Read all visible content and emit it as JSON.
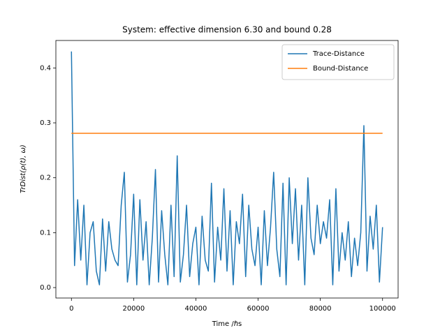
{
  "chart_data": {
    "type": "line",
    "title": "System: effective dimension 6.30 and bound 0.28",
    "xlabel": "Time /ℏs",
    "ylabel": "TrDist(ρ(t), ω)",
    "xlim": [
      -5000,
      105000
    ],
    "ylim": [
      -0.019,
      0.45
    ],
    "xticks": [
      0,
      20000,
      40000,
      60000,
      80000,
      100000
    ],
    "yticks": [
      {
        "value": 0,
        "label": "0.0"
      },
      0.1,
      0.2,
      0.3,
      0.4
    ],
    "legend": "upper right",
    "series": [
      {
        "name": "Trace-Distance",
        "color": "#1f77b4",
        "x": [
          0,
          1000,
          2000,
          3000,
          4000,
          5000,
          6000,
          7000,
          8000,
          9000,
          10000,
          11000,
          12000,
          13000,
          14000,
          15000,
          16000,
          17000,
          18000,
          19000,
          20000,
          21000,
          22000,
          23000,
          24000,
          25000,
          26000,
          27000,
          28000,
          29000,
          30000,
          31000,
          32000,
          33000,
          34000,
          35000,
          36000,
          37000,
          38000,
          39000,
          40000,
          41000,
          42000,
          43000,
          44000,
          45000,
          46000,
          47000,
          48000,
          49000,
          50000,
          51000,
          52000,
          53000,
          54000,
          55000,
          56000,
          57000,
          58000,
          59000,
          60000,
          61000,
          62000,
          63000,
          64000,
          65000,
          66000,
          67000,
          68000,
          69000,
          70000,
          71000,
          72000,
          73000,
          74000,
          75000,
          76000,
          77000,
          78000,
          79000,
          80000,
          81000,
          82000,
          83000,
          84000,
          85000,
          86000,
          87000,
          88000,
          89000,
          90000,
          91000,
          92000,
          93000,
          94000,
          95000,
          96000,
          97000,
          98000,
          99000,
          100000
        ],
        "values": [
          0.43,
          0.04,
          0.16,
          0.05,
          0.15,
          0.005,
          0.1,
          0.12,
          0.03,
          0.005,
          0.125,
          0.03,
          0.12,
          0.07,
          0.05,
          0.04,
          0.15,
          0.21,
          0.01,
          0.06,
          0.17,
          0.005,
          0.16,
          0.05,
          0.12,
          0.005,
          0.09,
          0.215,
          0.01,
          0.14,
          0.06,
          0.005,
          0.15,
          0.02,
          0.24,
          0.01,
          0.06,
          0.15,
          0.02,
          0.08,
          0.11,
          0.005,
          0.13,
          0.05,
          0.03,
          0.19,
          0.01,
          0.11,
          0.05,
          0.18,
          0.03,
          0.14,
          0.005,
          0.12,
          0.08,
          0.17,
          0.02,
          0.15,
          0.07,
          0.04,
          0.11,
          0.005,
          0.14,
          0.04,
          0.11,
          0.21,
          0.07,
          0.02,
          0.19,
          0.005,
          0.2,
          0.08,
          0.18,
          0.05,
          0.15,
          0.005,
          0.2,
          0.09,
          0.06,
          0.15,
          0.08,
          0.12,
          0.09,
          0.16,
          0.005,
          0.18,
          0.03,
          0.1,
          0.05,
          0.12,
          0.02,
          0.09,
          0.04,
          0.1,
          0.295,
          0.03,
          0.13,
          0.07,
          0.15,
          0.01,
          0.11
        ]
      },
      {
        "name": "Bound-Distance",
        "color": "#ff7f0e",
        "x": [
          0,
          100000
        ],
        "values": [
          0.281,
          0.281
        ]
      }
    ]
  }
}
